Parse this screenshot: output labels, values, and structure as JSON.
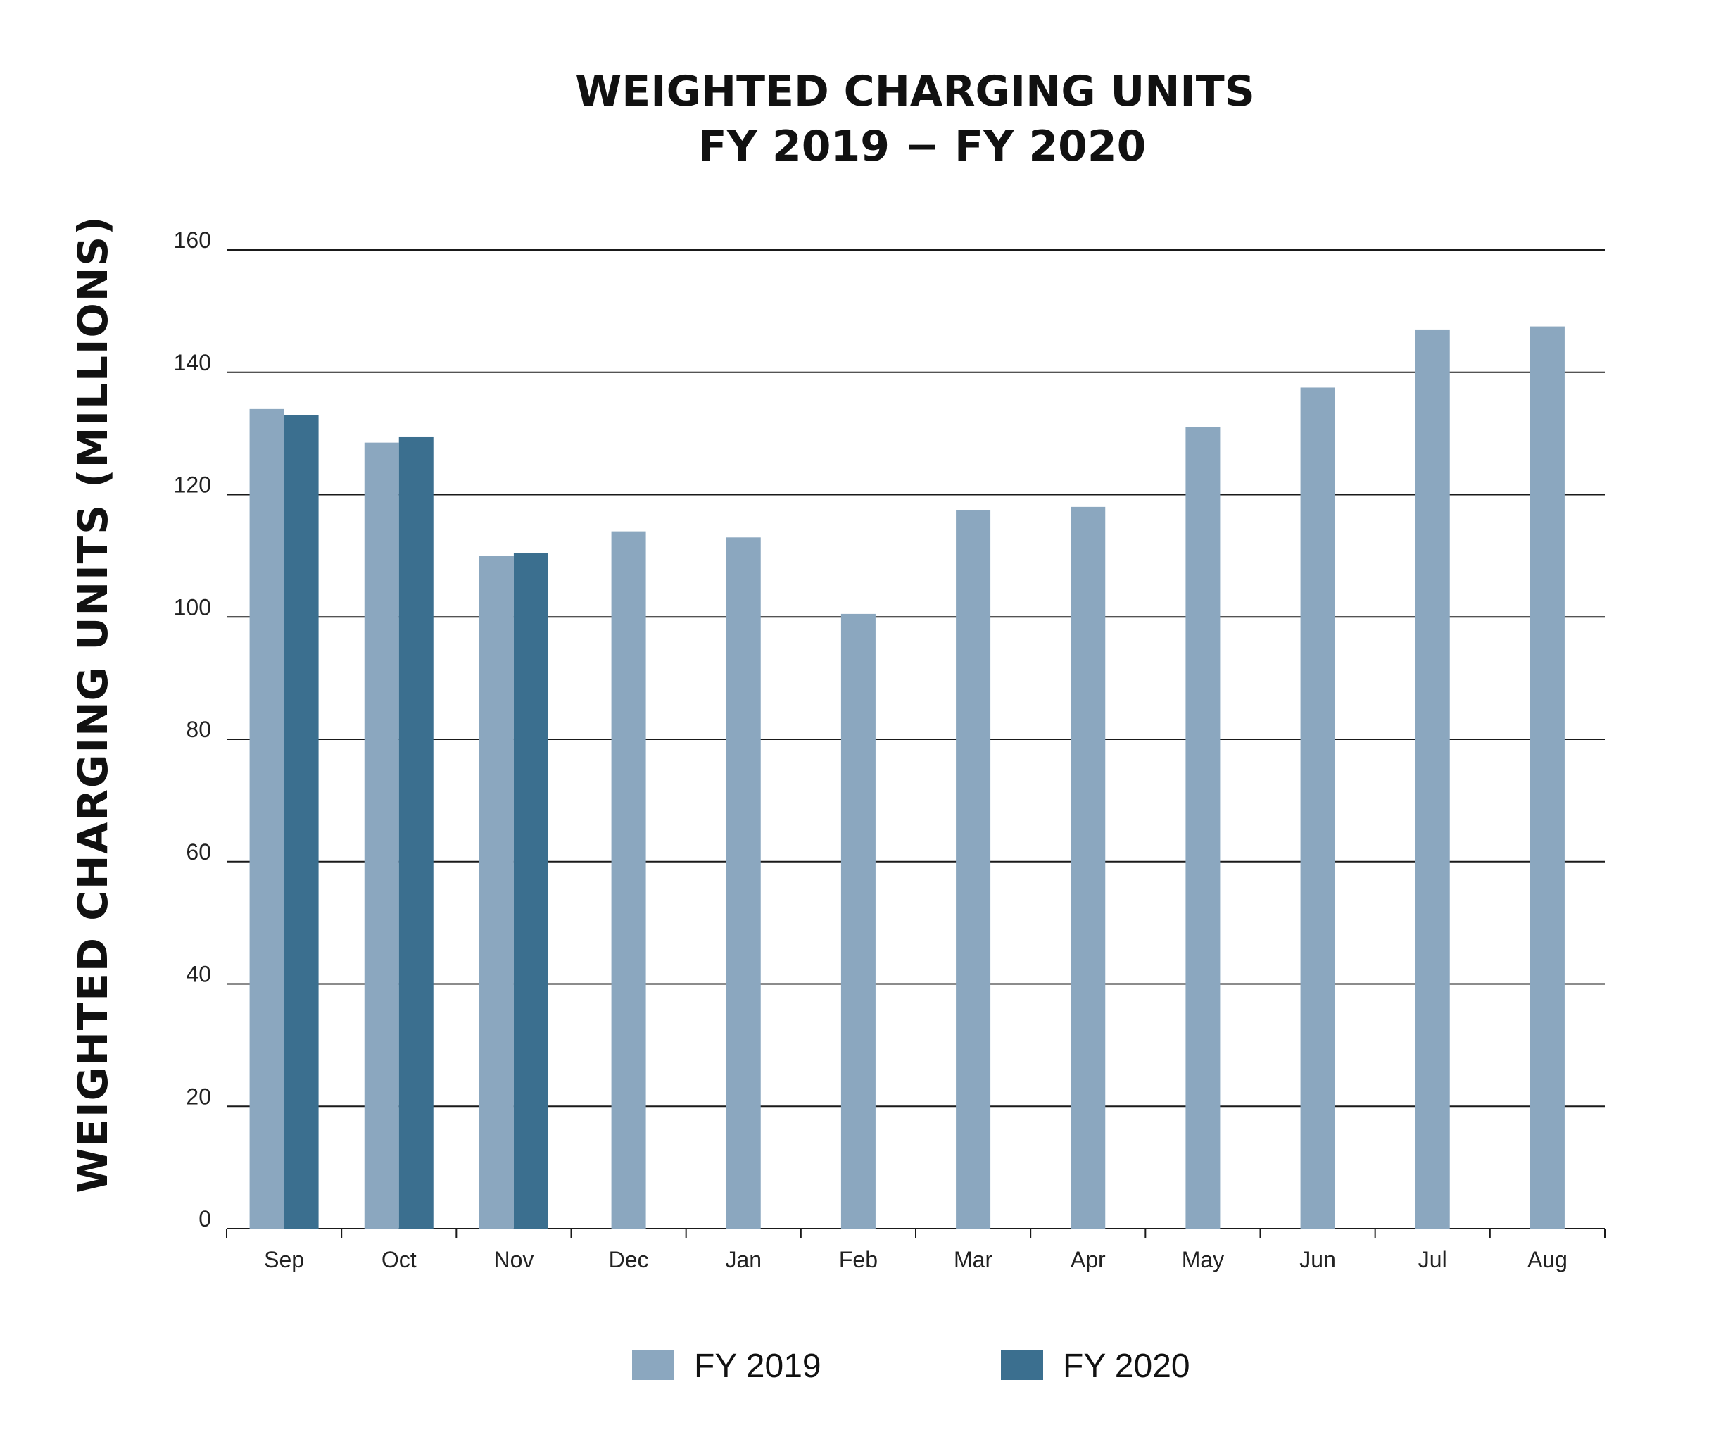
{
  "chart_data": {
    "type": "bar",
    "title": [
      "WEIGHTED CHARGING UNITS",
      "FY 2019 − FY 2020"
    ],
    "ylabel": "WEIGHTED CHARGING UNITS (MILLIONS)",
    "xlabel": "",
    "ylim": [
      0,
      160
    ],
    "yticks": [
      0,
      20,
      40,
      60,
      80,
      100,
      120,
      140,
      160
    ],
    "grid": true,
    "legend_position": "bottom",
    "categories": [
      "Sep",
      "Oct",
      "Nov",
      "Dec",
      "Jan",
      "Feb",
      "Mar",
      "Apr",
      "May",
      "Jun",
      "Jul",
      "Aug"
    ],
    "series": [
      {
        "name": "FY 2019",
        "color": "#8ba7bf",
        "values": [
          134,
          128.5,
          110,
          114,
          113,
          100.5,
          117.5,
          118,
          131,
          137.5,
          147,
          147.5
        ]
      },
      {
        "name": "FY 2020",
        "color": "#3b6f8f",
        "values": [
          133,
          129.5,
          110.5,
          null,
          null,
          null,
          null,
          null,
          null,
          null,
          null,
          null
        ]
      }
    ]
  }
}
